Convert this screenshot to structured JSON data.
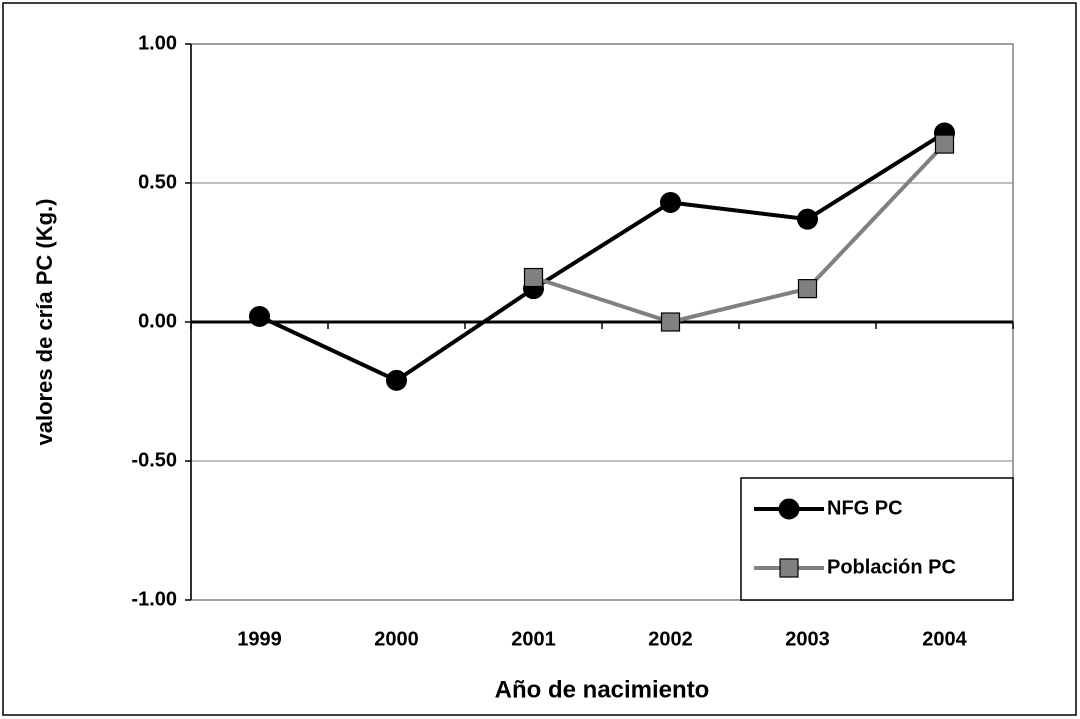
{
  "chart_data": {
    "type": "line",
    "x_label": "Año de nacimiento",
    "y_label": "valores de cría PC (Kg.)",
    "categories": [
      "1999",
      "2000",
      "2001",
      "2002",
      "2003",
      "2004"
    ],
    "series": [
      {
        "name": "NFG PC",
        "color": "#000000",
        "values": [
          0.02,
          -0.21,
          0.12,
          0.43,
          0.37,
          0.68
        ]
      },
      {
        "name": "Población PC",
        "color": "#808080",
        "values": [
          null,
          null,
          0.16,
          0.0,
          0.12,
          0.64
        ]
      }
    ],
    "ylim": [
      -1,
      1
    ],
    "yticks": [
      {
        "value": -1,
        "label": "-1.00"
      },
      {
        "value": -0.5,
        "label": "-0.50"
      },
      {
        "value": 0,
        "label": "0.00"
      },
      {
        "value": 0.5,
        "label": "0.50"
      },
      {
        "value": 1,
        "label": "1.00"
      }
    ],
    "grid": true,
    "legend": "bottom-right"
  }
}
